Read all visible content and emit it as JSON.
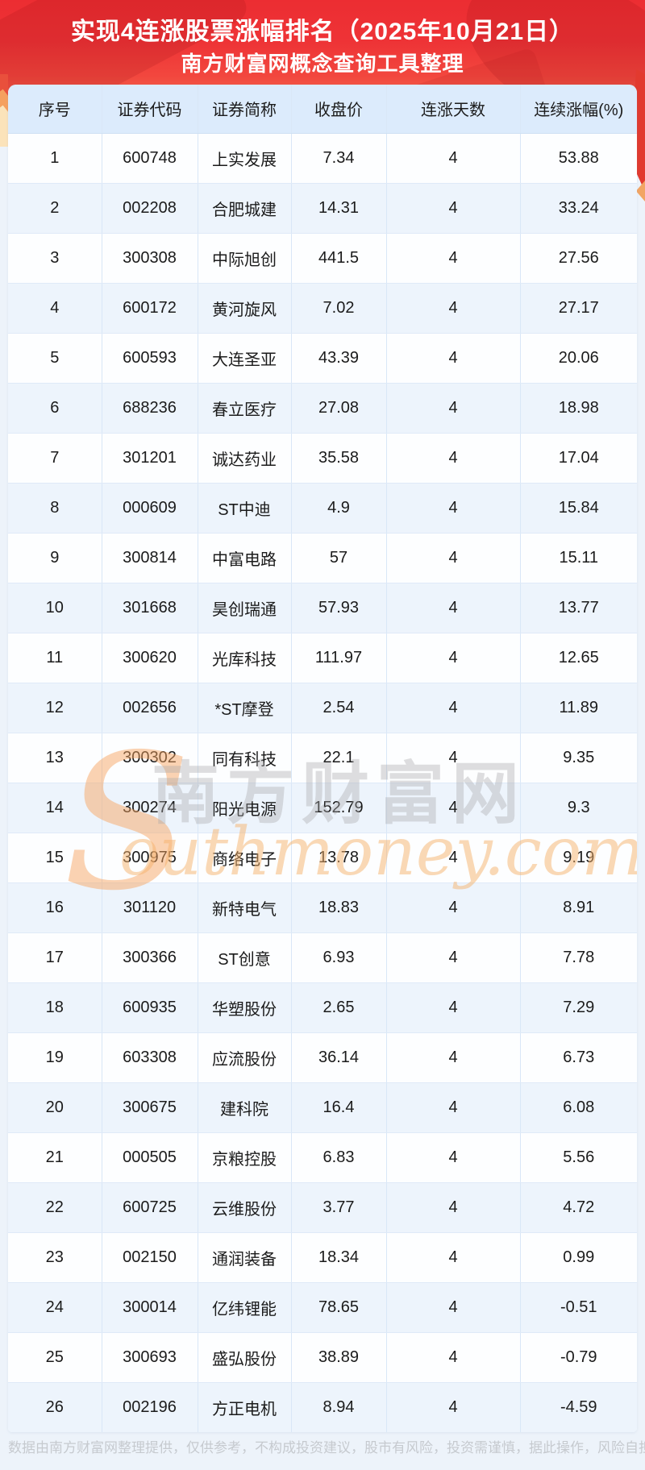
{
  "banner": {
    "title_line1": "实现4连涨股票涨幅排名（2025年10月21日）",
    "title_line2": "南方财富网概念查询工具整理"
  },
  "table": {
    "headers": [
      "序号",
      "证券代码",
      "证券简称",
      "收盘价",
      "连涨天数",
      "连续涨幅(%)"
    ],
    "rows": [
      [
        "1",
        "600748",
        "上实发展",
        "7.34",
        "4",
        "53.88"
      ],
      [
        "2",
        "002208",
        "合肥城建",
        "14.31",
        "4",
        "33.24"
      ],
      [
        "3",
        "300308",
        "中际旭创",
        "441.5",
        "4",
        "27.56"
      ],
      [
        "4",
        "600172",
        "黄河旋风",
        "7.02",
        "4",
        "27.17"
      ],
      [
        "5",
        "600593",
        "大连圣亚",
        "43.39",
        "4",
        "20.06"
      ],
      [
        "6",
        "688236",
        "春立医疗",
        "27.08",
        "4",
        "18.98"
      ],
      [
        "7",
        "301201",
        "诚达药业",
        "35.58",
        "4",
        "17.04"
      ],
      [
        "8",
        "000609",
        "ST中迪",
        "4.9",
        "4",
        "15.84"
      ],
      [
        "9",
        "300814",
        "中富电路",
        "57",
        "4",
        "15.11"
      ],
      [
        "10",
        "301668",
        "昊创瑞通",
        "57.93",
        "4",
        "13.77"
      ],
      [
        "11",
        "300620",
        "光库科技",
        "111.97",
        "4",
        "12.65"
      ],
      [
        "12",
        "002656",
        "*ST摩登",
        "2.54",
        "4",
        "11.89"
      ],
      [
        "13",
        "300302",
        "同有科技",
        "22.1",
        "4",
        "9.35"
      ],
      [
        "14",
        "300274",
        "阳光电源",
        "152.79",
        "4",
        "9.3"
      ],
      [
        "15",
        "300975",
        "商络电子",
        "13.78",
        "4",
        "9.19"
      ],
      [
        "16",
        "301120",
        "新特电气",
        "18.83",
        "4",
        "8.91"
      ],
      [
        "17",
        "300366",
        "ST创意",
        "6.93",
        "4",
        "7.78"
      ],
      [
        "18",
        "600935",
        "华塑股份",
        "2.65",
        "4",
        "7.29"
      ],
      [
        "19",
        "603308",
        "应流股份",
        "36.14",
        "4",
        "6.73"
      ],
      [
        "20",
        "300675",
        "建科院",
        "16.4",
        "4",
        "6.08"
      ],
      [
        "21",
        "000505",
        "京粮控股",
        "6.83",
        "4",
        "5.56"
      ],
      [
        "22",
        "600725",
        "云维股份",
        "3.77",
        "4",
        "4.72"
      ],
      [
        "23",
        "002150",
        "通润装备",
        "18.34",
        "4",
        "0.99"
      ],
      [
        "24",
        "300014",
        "亿纬锂能",
        "78.65",
        "4",
        "-0.51"
      ],
      [
        "25",
        "300693",
        "盛弘股份",
        "38.89",
        "4",
        "-0.79"
      ],
      [
        "26",
        "002196",
        "方正电机",
        "8.94",
        "4",
        "-4.59"
      ]
    ]
  },
  "watermark": {
    "initial": "S",
    "cjk": "南方财富网",
    "latin": "outhmoney.com"
  },
  "footer": {
    "disclaimer": "数据由南方财富网整理提供，仅供参考，不构成投资建议，股市有风险，投资需谨慎，据此操作，风险自担。"
  },
  "colors": {
    "banner_red_top": "#ec2d32",
    "banner_red_mid": "#f2473e",
    "banner_fade_cream": "#f9ecd0",
    "header_row_bg": "#dcebfc",
    "row_alt_bg": "#edf4fc",
    "row_bg": "#fdfeff",
    "cell_border": "#dfeaf8",
    "page_bg": "#edf3fa",
    "title_text": "#ffffff",
    "cell_text": "#1b1b1b",
    "footer_text": "#c6cacf",
    "watermark_orange": "#f6a45e",
    "watermark_gray": "#a7a7ac"
  }
}
